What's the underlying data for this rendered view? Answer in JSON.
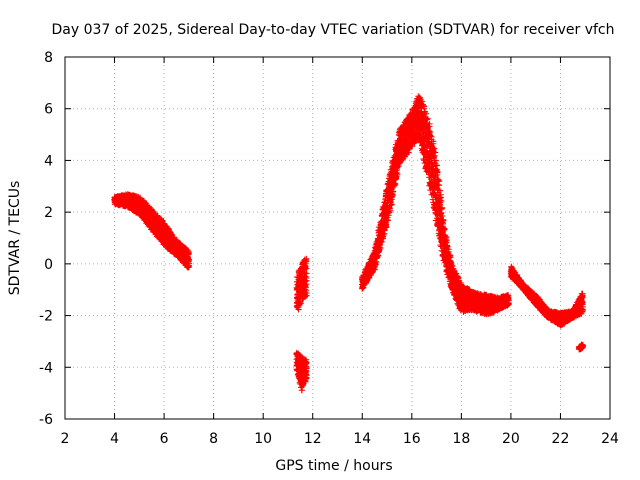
{
  "chart_data": {
    "type": "scatter",
    "title": "Day 037 of 2025, Sidereal Day-to-day VTEC variation (SDTVAR) for receiver vfch",
    "xlabel": "GPS time / hours",
    "ylabel": "SDTVAR / TECUs",
    "xlim": [
      2,
      24
    ],
    "ylim": [
      -6,
      8
    ],
    "xticks": [
      2,
      4,
      6,
      8,
      10,
      12,
      14,
      16,
      18,
      20,
      22,
      24
    ],
    "yticks": [
      -6,
      -4,
      -2,
      0,
      2,
      4,
      6,
      8
    ],
    "grid": true,
    "marker": "+",
    "series": [
      {
        "name": "SDTVAR vfch",
        "color": "#ff0000",
        "segments": [
          {
            "upper": [
              [
                4.0,
                2.6
              ],
              [
                4.5,
                2.7
              ],
              [
                5.0,
                2.6
              ],
              [
                5.5,
                2.1
              ],
              [
                6.0,
                1.6
              ],
              [
                6.5,
                0.9
              ],
              [
                7.0,
                0.5
              ]
            ],
            "lower": [
              [
                4.0,
                2.3
              ],
              [
                4.5,
                2.2
              ],
              [
                5.0,
                1.9
              ],
              [
                5.5,
                1.3
              ],
              [
                6.0,
                0.7
              ],
              [
                6.5,
                0.3
              ],
              [
                7.0,
                -0.2
              ]
            ]
          },
          {
            "upper": [
              [
                11.35,
                -0.5
              ],
              [
                11.55,
                0.0
              ],
              [
                11.75,
                0.3
              ]
            ],
            "lower": [
              [
                11.35,
                -2.0
              ],
              [
                11.55,
                -1.5
              ],
              [
                11.75,
                -1.3
              ]
            ]
          },
          {
            "upper": [
              [
                11.35,
                -3.4
              ],
              [
                11.55,
                -3.6
              ],
              [
                11.75,
                -3.7
              ]
            ],
            "lower": [
              [
                11.35,
                -4.1
              ],
              [
                11.55,
                -4.9
              ],
              [
                11.75,
                -4.5
              ]
            ]
          },
          {
            "upper": [
              [
                14.0,
                -0.5
              ],
              [
                14.5,
                0.5
              ],
              [
                15.0,
                3.0
              ],
              [
                15.5,
                5.2
              ],
              [
                16.0,
                5.9
              ],
              [
                16.3,
                6.6
              ],
              [
                16.7,
                5.5
              ],
              [
                17.0,
                4.0
              ],
              [
                17.3,
                1.5
              ],
              [
                17.6,
                0.0
              ],
              [
                18.0,
                -0.8
              ],
              [
                18.5,
                -1.1
              ],
              [
                19.0,
                -1.2
              ],
              [
                19.5,
                -1.3
              ],
              [
                19.9,
                -1.2
              ]
            ],
            "lower": [
              [
                14.0,
                -1.0
              ],
              [
                14.5,
                -0.2
              ],
              [
                15.0,
                1.5
              ],
              [
                15.5,
                3.8
              ],
              [
                16.0,
                4.5
              ],
              [
                16.3,
                4.8
              ],
              [
                16.7,
                3.0
              ],
              [
                17.0,
                1.5
              ],
              [
                17.3,
                0.0
              ],
              [
                17.6,
                -1.0
              ],
              [
                18.0,
                -1.9
              ],
              [
                18.5,
                -1.8
              ],
              [
                19.0,
                -2.0
              ],
              [
                19.5,
                -1.8
              ],
              [
                19.9,
                -1.6
              ]
            ]
          },
          {
            "upper": [
              [
                20.0,
                -0.1
              ],
              [
                20.5,
                -0.8
              ],
              [
                21.0,
                -1.2
              ],
              [
                21.5,
                -1.8
              ],
              [
                22.0,
                -1.9
              ],
              [
                22.5,
                -1.8
              ],
              [
                22.9,
                -1.1
              ]
            ],
            "lower": [
              [
                20.0,
                -0.5
              ],
              [
                20.5,
                -1.0
              ],
              [
                21.0,
                -1.6
              ],
              [
                21.5,
                -2.1
              ],
              [
                22.0,
                -2.4
              ],
              [
                22.5,
                -2.1
              ],
              [
                22.9,
                -1.9
              ]
            ]
          },
          {
            "upper": [
              [
                22.75,
                -3.2
              ],
              [
                22.9,
                -3.1
              ]
            ],
            "lower": [
              [
                22.75,
                -3.35
              ],
              [
                22.9,
                -3.25
              ]
            ]
          }
        ]
      }
    ]
  }
}
